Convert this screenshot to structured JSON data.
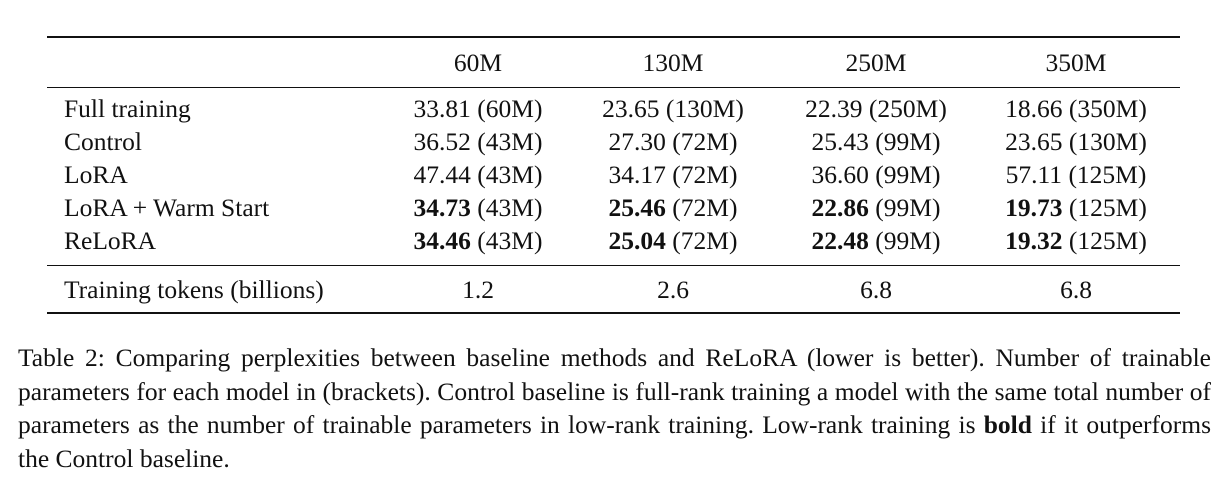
{
  "table": {
    "columns": [
      "60M",
      "130M",
      "250M",
      "350M"
    ],
    "rows": [
      {
        "label": "Full training",
        "cells": [
          {
            "value": "33.81",
            "params": "(60M)",
            "bold": false
          },
          {
            "value": "23.65",
            "params": "(130M)",
            "bold": false
          },
          {
            "value": "22.39",
            "params": "(250M)",
            "bold": false
          },
          {
            "value": "18.66",
            "params": "(350M)",
            "bold": false
          }
        ]
      },
      {
        "label": "Control",
        "cells": [
          {
            "value": "36.52",
            "params": "(43M)",
            "bold": false
          },
          {
            "value": "27.30",
            "params": "(72M)",
            "bold": false
          },
          {
            "value": "25.43",
            "params": "(99M)",
            "bold": false
          },
          {
            "value": "23.65",
            "params": "(130M)",
            "bold": false
          }
        ]
      },
      {
        "label": "LoRA",
        "cells": [
          {
            "value": "47.44",
            "params": "(43M)",
            "bold": false
          },
          {
            "value": "34.17",
            "params": "(72M)",
            "bold": false
          },
          {
            "value": "36.60",
            "params": "(99M)",
            "bold": false
          },
          {
            "value": "57.11",
            "params": "(125M)",
            "bold": false
          }
        ]
      },
      {
        "label": "LoRA + Warm Start",
        "cells": [
          {
            "value": "34.73",
            "params": "(43M)",
            "bold": true
          },
          {
            "value": "25.46",
            "params": "(72M)",
            "bold": true
          },
          {
            "value": "22.86",
            "params": "(99M)",
            "bold": true
          },
          {
            "value": "19.73",
            "params": "(125M)",
            "bold": true
          }
        ]
      },
      {
        "label": "ReLoRA",
        "cells": [
          {
            "value": "34.46",
            "params": "(43M)",
            "bold": true
          },
          {
            "value": "25.04",
            "params": "(72M)",
            "bold": true
          },
          {
            "value": "22.48",
            "params": "(99M)",
            "bold": true
          },
          {
            "value": "19.32",
            "params": "(125M)",
            "bold": true
          }
        ]
      }
    ],
    "tokens": {
      "label": "Training tokens (billions)",
      "values": [
        "1.2",
        "2.6",
        "6.8",
        "6.8"
      ]
    }
  },
  "caption": {
    "parts": [
      "Table 2: Comparing perplexities between baseline methods and ReLoRA (lower is better). Number of trainable parameters for each model in (brackets). Control baseline is full-rank training a model with the same total number of parameters as the number of trainable parameters in low-rank training. Low-rank training is ",
      "bold",
      " if it outperforms the Control baseline."
    ]
  }
}
